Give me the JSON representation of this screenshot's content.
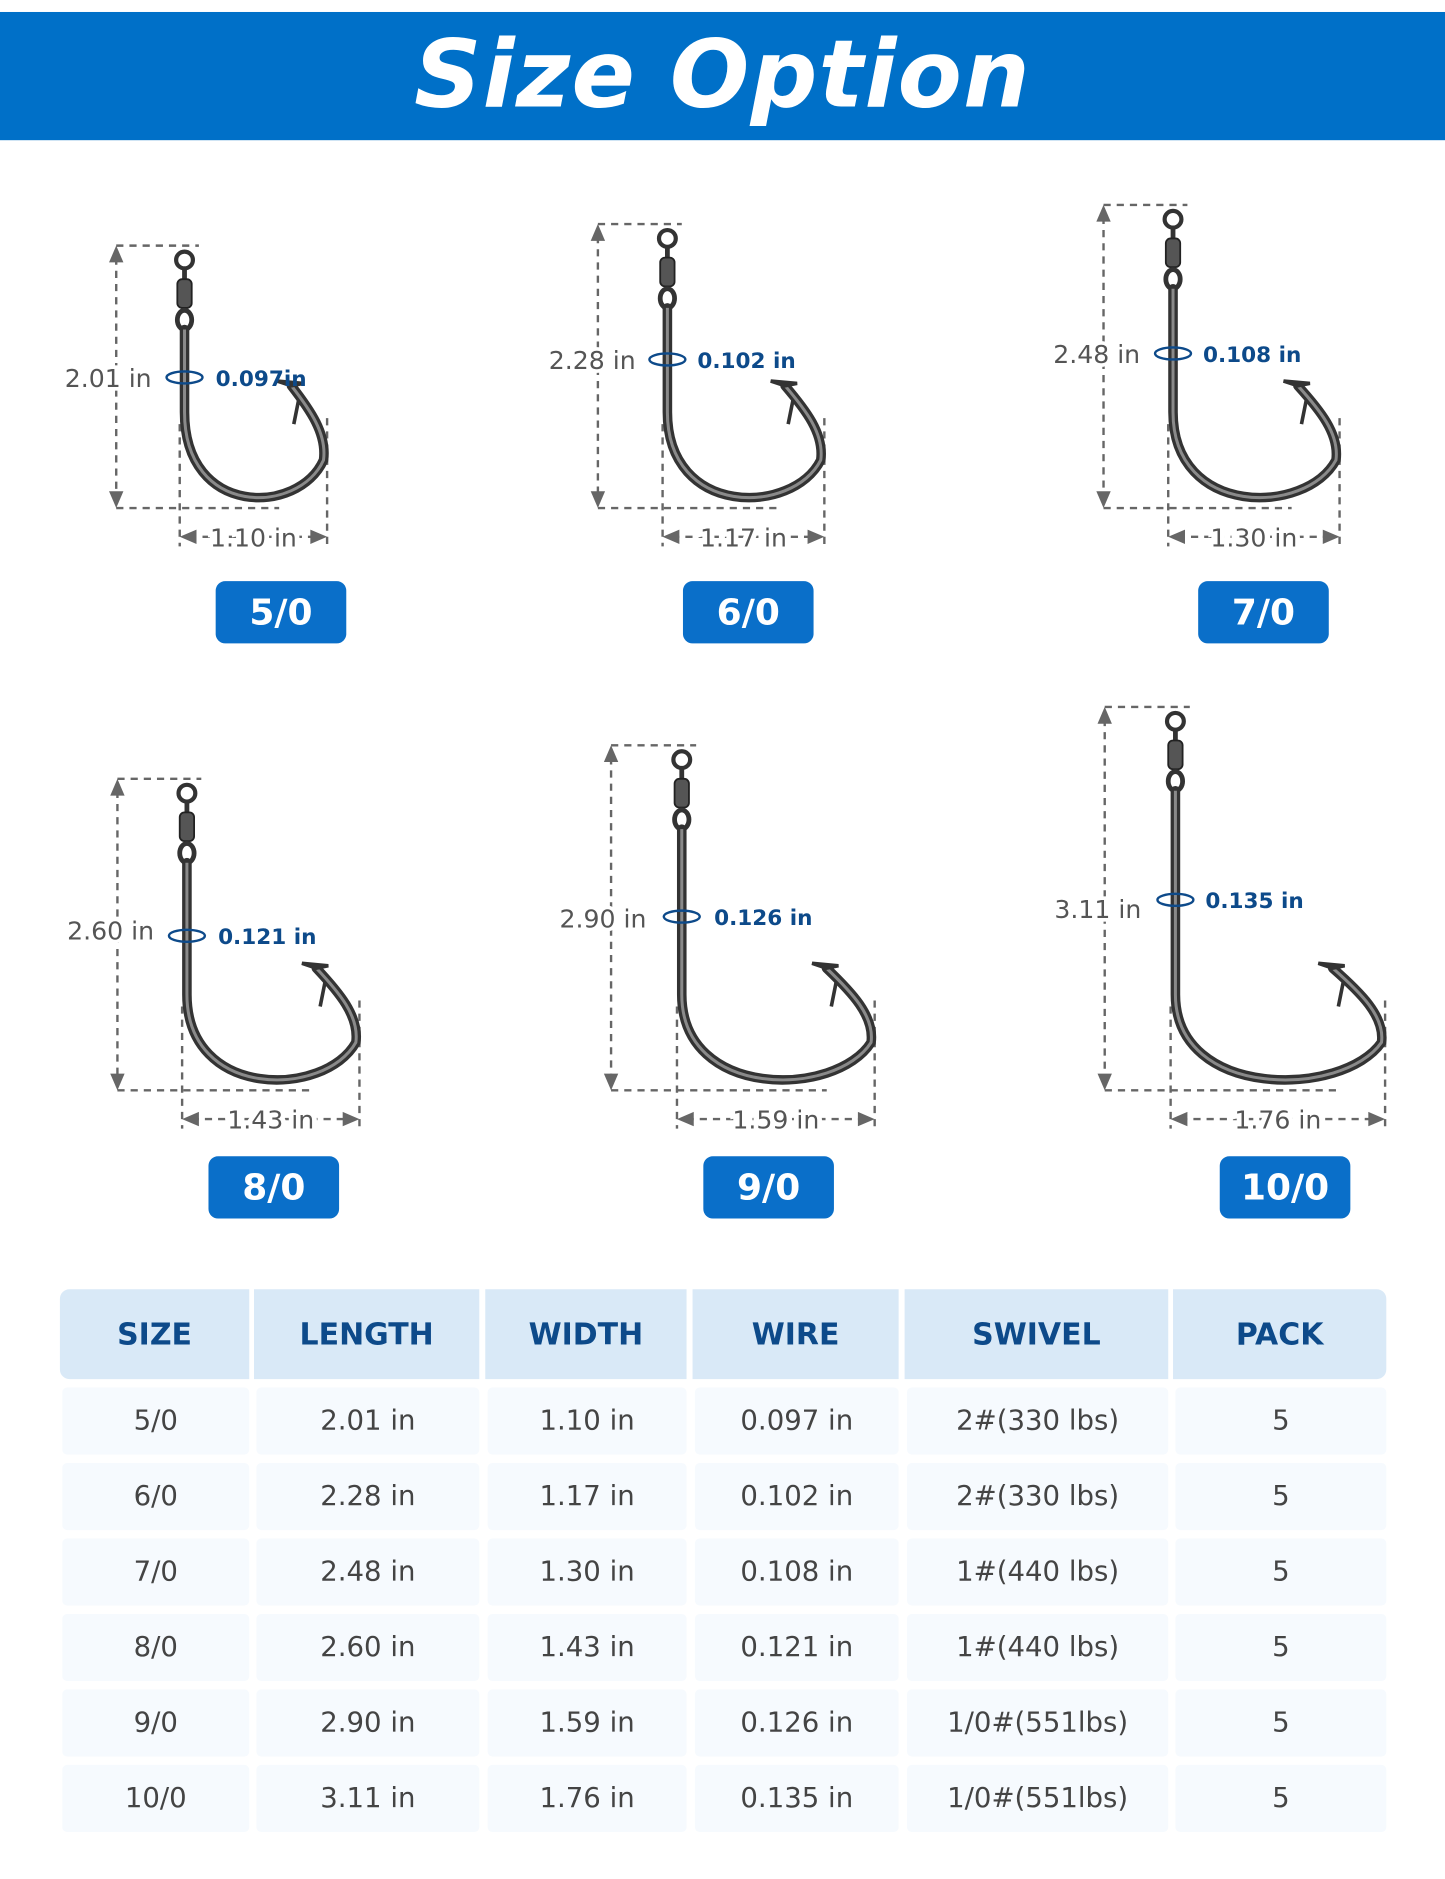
{
  "title": "Size Option",
  "colors": {
    "brand_blue": "#0070c8",
    "badge_blue": "#0a6fc9",
    "header_bg": "#d9e9f7",
    "header_text": "#0d4a8a",
    "wire_label": "#0d4a8a"
  },
  "hooks": [
    {
      "size": "5/0",
      "length": "2.01 in",
      "width": "1.10 in",
      "wire": "0.097in"
    },
    {
      "size": "6/0",
      "length": "2.28 in",
      "width": "1.17 in",
      "wire": "0.102 in"
    },
    {
      "size": "7/0",
      "length": "2.48 in",
      "width": "1.30 in",
      "wire": "0.108 in"
    },
    {
      "size": "8/0",
      "length": "2.60 in",
      "width": "1.43 in",
      "wire": "0.121 in"
    },
    {
      "size": "9/0",
      "length": "2.90 in",
      "width": "1.59 in",
      "wire": "0.126 in"
    },
    {
      "size": "10/0",
      "length": "3.11 in",
      "width": "1.76 in",
      "wire": "0.135 in"
    }
  ],
  "table": {
    "headers": [
      "SIZE",
      "LENGTH",
      "WIDTH",
      "WIRE",
      "SWIVEL",
      "PACK"
    ],
    "rows": [
      [
        "5/0",
        "2.01 in",
        "1.10 in",
        "0.097 in",
        "2#(330 lbs)",
        "5"
      ],
      [
        "6/0",
        "2.28 in",
        "1.17 in",
        "0.102 in",
        "2#(330 lbs)",
        "5"
      ],
      [
        "7/0",
        "2.48 in",
        "1.30 in",
        "0.108 in",
        "1#(440 lbs)",
        "5"
      ],
      [
        "8/0",
        "2.60 in",
        "1.43 in",
        "0.121 in",
        "1#(440 lbs)",
        "5"
      ],
      [
        "9/0",
        "2.90 in",
        "1.59 in",
        "0.126 in",
        "1/0#(551lbs)",
        "5"
      ],
      [
        "10/0",
        "3.11 in",
        "1.76 in",
        "0.135 in",
        "1/0#(551lbs)",
        "5"
      ]
    ]
  }
}
